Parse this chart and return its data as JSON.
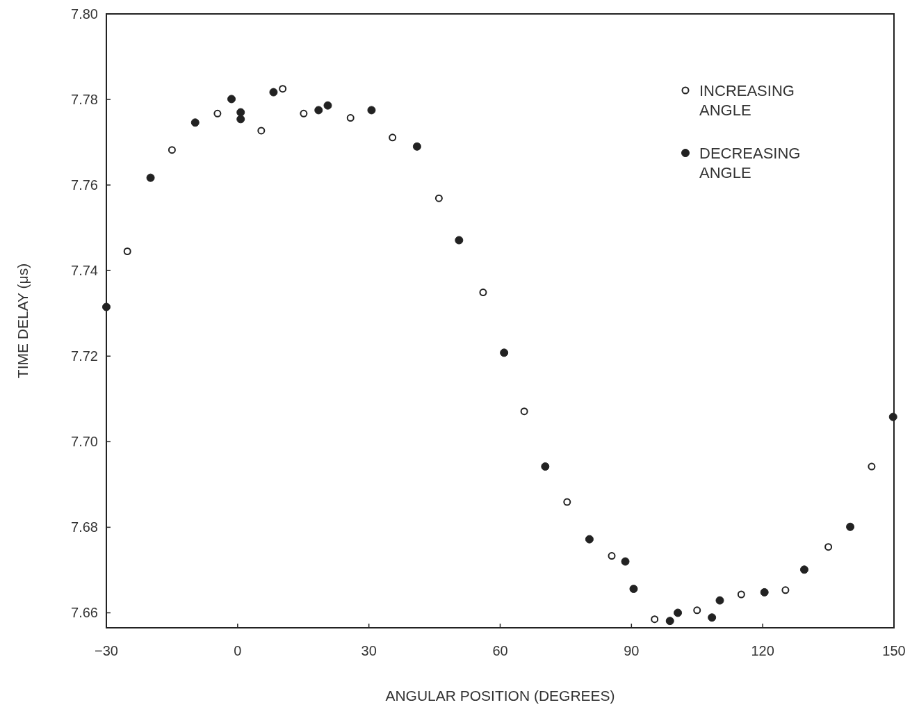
{
  "chart_data": {
    "type": "scatter",
    "xlabel": "ANGULAR POSITION (DEGREES)",
    "ylabel": "TIME DELAY (μs)",
    "xlim": [
      -30,
      150
    ],
    "xticks": [
      {
        "value": -30,
        "label": "−30"
      },
      0,
      30,
      60,
      90,
      120,
      150
    ],
    "ylim": [
      7.6565,
      7.8
    ],
    "yticks": [
      7.66,
      7.68,
      {
        "value": 7.7,
        "label": "7.70"
      },
      7.72,
      7.74,
      7.76,
      7.78,
      {
        "value": 7.8,
        "label": "7.80"
      }
    ],
    "grid": false,
    "legend": "top right",
    "series": [
      {
        "name": "INCREASING ANGLE",
        "color": "#222222",
        "marker": "circle-open",
        "x": [
          -25.2,
          -15,
          -4.6,
          5.4,
          10.3,
          15.1,
          25.8,
          35.4,
          46,
          56.1,
          65.5,
          75.3,
          85.5,
          95.3,
          105,
          115.1,
          125.2,
          135,
          144.9
        ],
        "values": [
          7.7445,
          7.7682,
          7.7767,
          7.7727,
          7.7825,
          7.7767,
          7.7757,
          7.7711,
          7.7569,
          7.7349,
          7.7071,
          7.6859,
          7.6733,
          7.6585,
          7.6606,
          7.6643,
          7.6653,
          7.6754,
          7.6942
        ]
      },
      {
        "name": "DECREASING ANGLE",
        "color": "#222222",
        "marker": "circle",
        "x": [
          -30,
          -19.9,
          -9.7,
          -1.4,
          0.7,
          0.7,
          8.2,
          18.5,
          20.6,
          30.6,
          41,
          50.6,
          60.9,
          70.3,
          80.4,
          88.6,
          90.5,
          98.8,
          100.6,
          108.4,
          110.2,
          120.4,
          129.5,
          140,
          149.8
        ],
        "values": [
          7.7315,
          7.7617,
          7.7746,
          7.7801,
          7.777,
          7.7754,
          7.7817,
          7.7775,
          7.7786,
          7.7775,
          7.769,
          7.7471,
          7.7208,
          7.6942,
          7.6772,
          7.672,
          7.6656,
          7.6581,
          7.66,
          7.6589,
          7.6629,
          7.6648,
          7.6701,
          7.6801,
          7.7058
        ]
      }
    ]
  }
}
